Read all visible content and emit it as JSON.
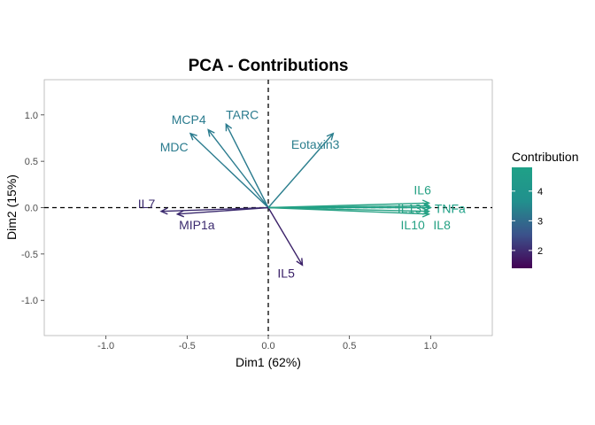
{
  "chart_data": {
    "type": "pca-variable-plot",
    "title": "PCA - Contributions",
    "xlabel": "Dim1 (62%)",
    "ylabel": "Dim2 (15%)",
    "xlim": [
      -1.38,
      1.38
    ],
    "ylim": [
      -1.38,
      1.38
    ],
    "xticks": [
      -1.0,
      -0.5,
      0.0,
      0.5,
      1.0
    ],
    "yticks": [
      -1.0,
      -0.5,
      0.0,
      0.5,
      1.0
    ],
    "xtick_labels": [
      "-1.0",
      "-0.5",
      "0.0",
      "0.5",
      "1.0"
    ],
    "ytick_labels": [
      "-1.0",
      "-0.5",
      "0.0",
      "0.5",
      "1.0"
    ],
    "reference_lines": {
      "x": 0,
      "y": 0,
      "style": "dashed"
    },
    "legend": {
      "title": "Contribution",
      "position": "right",
      "range": [
        1.4,
        4.8
      ],
      "ticks": [
        2,
        3,
        4
      ],
      "tick_labels": [
        "2",
        "3",
        "4"
      ],
      "gradient": [
        "#440154",
        "#3b528b",
        "#21908d",
        "#1fa187"
      ]
    },
    "variables": [
      {
        "name": "MCP4",
        "x": -0.37,
        "y": 0.84,
        "contrib": 4.0,
        "color": "#2a7b8e",
        "label_x": -0.49,
        "label_y": 0.94
      },
      {
        "name": "TARC",
        "x": -0.26,
        "y": 0.9,
        "contrib": 4.0,
        "color": "#2a7b8e",
        "label_x": -0.16,
        "label_y": 0.99
      },
      {
        "name": "MDC",
        "x": -0.48,
        "y": 0.8,
        "contrib": 4.0,
        "color": "#2a7b8e",
        "label_x": -0.58,
        "label_y": 0.64
      },
      {
        "name": "Eotaxin3",
        "x": 0.4,
        "y": 0.8,
        "contrib": 3.9,
        "color": "#2c7f8e",
        "label_x": 0.29,
        "label_y": 0.67
      },
      {
        "name": "IL7",
        "x": -0.66,
        "y": -0.04,
        "contrib": 1.7,
        "color": "#3b2a6e",
        "label_x": -0.75,
        "label_y": 0.03
      },
      {
        "name": "MIP1a",
        "x": -0.56,
        "y": -0.07,
        "contrib": 1.7,
        "color": "#3b2a6e",
        "label_x": -0.44,
        "label_y": -0.2
      },
      {
        "name": "IL5",
        "x": 0.21,
        "y": -0.62,
        "contrib": 1.5,
        "color": "#3a2068",
        "label_x": 0.11,
        "label_y": -0.72
      },
      {
        "name": "IL6",
        "x": 0.99,
        "y": 0.05,
        "contrib": 4.7,
        "color": "#26a184",
        "label_x": 0.95,
        "label_y": 0.18
      },
      {
        "name": "IL13",
        "x": 0.99,
        "y": 0.02,
        "contrib": 4.7,
        "color": "#26a184",
        "label_x": 0.87,
        "label_y": -0.02
      },
      {
        "name": "TNFa",
        "x": 1.0,
        "y": 0.0,
        "contrib": 4.8,
        "color": "#1fa187",
        "label_x": 1.12,
        "label_y": -0.02
      },
      {
        "name": "IL10",
        "x": 0.99,
        "y": -0.04,
        "contrib": 4.7,
        "color": "#26a184",
        "label_x": 0.89,
        "label_y": -0.2
      },
      {
        "name": "IL8",
        "x": 0.99,
        "y": -0.07,
        "contrib": 4.7,
        "color": "#26a184",
        "label_x": 1.07,
        "label_y": -0.2
      }
    ]
  }
}
